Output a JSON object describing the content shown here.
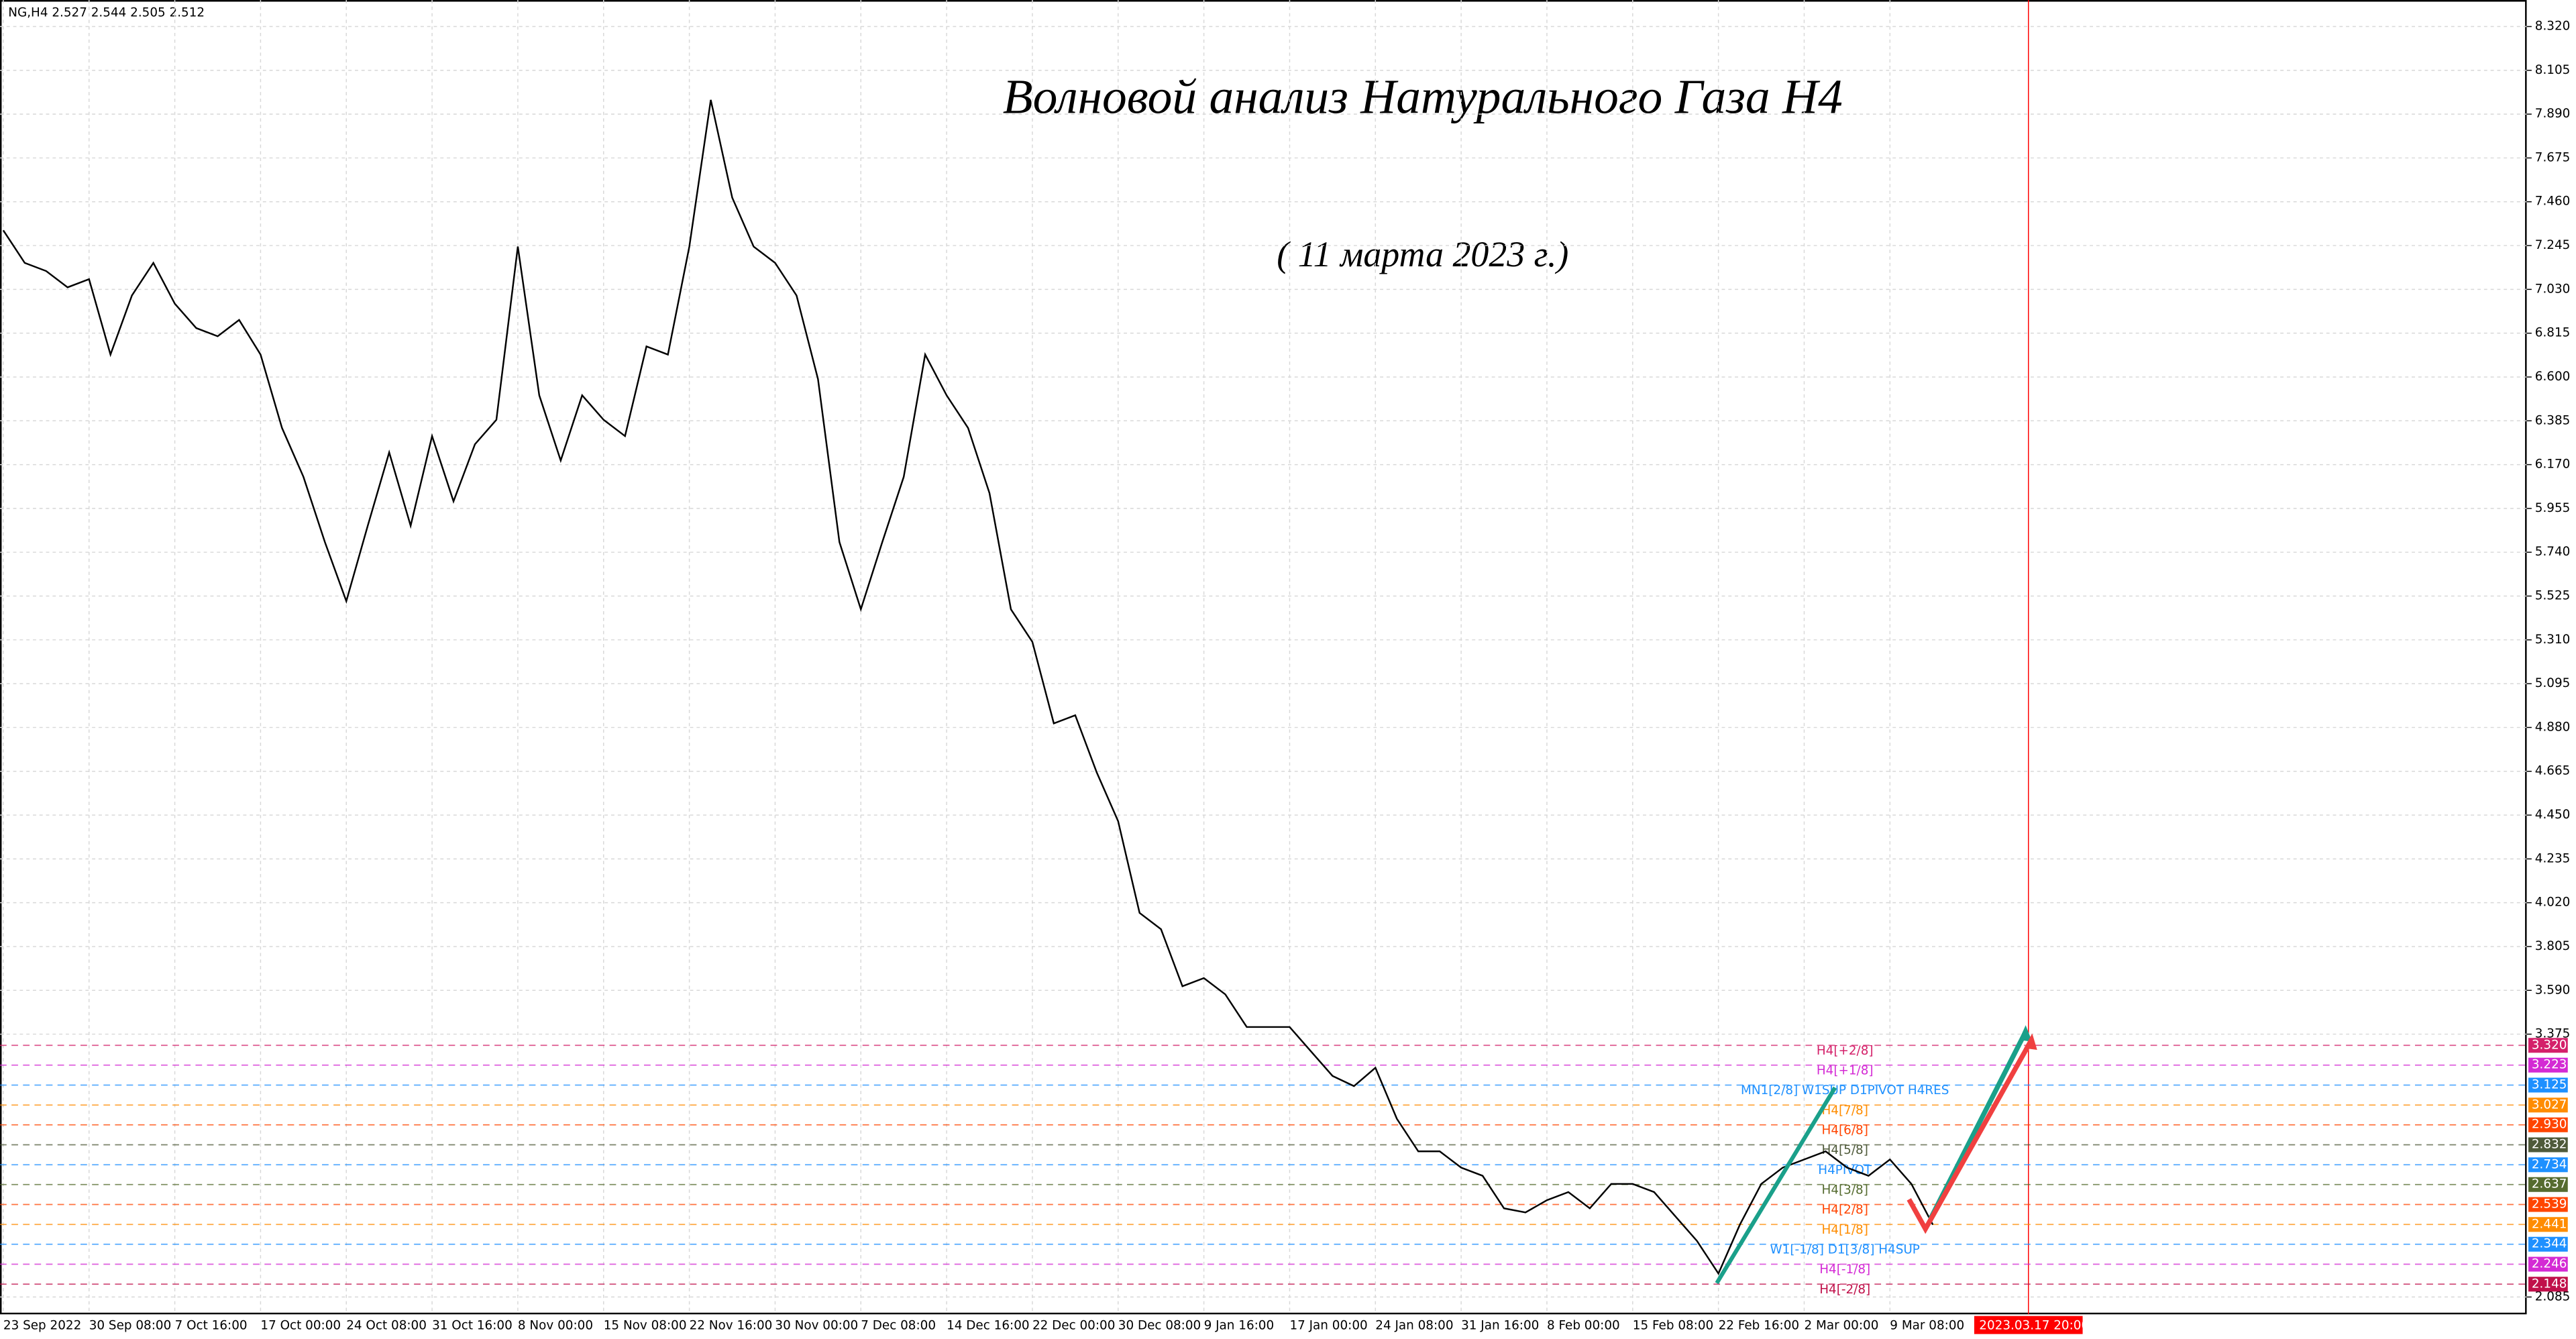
{
  "chart_data": {
    "type": "line",
    "header": "NG,H4  2.527 2.544 2.505 2.512",
    "title": "Волновой анализ Натурального Газа H4",
    "subtitle": "( 11 марта 2023 г.)",
    "color": "#000000",
    "cursor_color": "#ff0000",
    "grid": true,
    "ylim": [
      2.0,
      8.45
    ],
    "yticks": [
      {
        "value": 8.32,
        "label": "8.320"
      },
      {
        "value": 8.105,
        "label": "8.105"
      },
      {
        "value": 7.89,
        "label": "7.890"
      },
      {
        "value": 7.675,
        "label": "7.675"
      },
      {
        "value": 7.46,
        "label": "7.460"
      },
      {
        "value": 7.245,
        "label": "7.245"
      },
      {
        "value": 7.03,
        "label": "7.030"
      },
      {
        "value": 6.815,
        "label": "6.815"
      },
      {
        "value": 6.6,
        "label": "6.600"
      },
      {
        "value": 6.385,
        "label": "6.385"
      },
      {
        "value": 6.17,
        "label": "6.170"
      },
      {
        "value": 5.955,
        "label": "5.955"
      },
      {
        "value": 5.74,
        "label": "5.740"
      },
      {
        "value": 5.525,
        "label": "5.525"
      },
      {
        "value": 5.31,
        "label": "5.310"
      },
      {
        "value": 5.095,
        "label": "5.095"
      },
      {
        "value": 4.88,
        "label": "4.880"
      },
      {
        "value": 4.665,
        "label": "4.665"
      },
      {
        "value": 4.45,
        "label": "4.450"
      },
      {
        "value": 4.235,
        "label": "4.235"
      },
      {
        "value": 4.02,
        "label": "4.020"
      },
      {
        "value": 3.805,
        "label": "3.805"
      },
      {
        "value": 3.59,
        "label": "3.590"
      },
      {
        "value": 3.375,
        "label": "3.375"
      },
      {
        "value": 2.085,
        "label": "2.085"
      }
    ],
    "categories": [
      "23 Sep 2022",
      null,
      null,
      null,
      "30 Sep 08:00",
      null,
      null,
      null,
      "7 Oct 16:00",
      null,
      null,
      null,
      "17 Oct 00:00",
      null,
      null,
      null,
      "24 Oct 08:00",
      null,
      null,
      null,
      "31 Oct 16:00",
      null,
      null,
      null,
      "8 Nov 00:00",
      null,
      null,
      null,
      "15 Nov 08:00",
      null,
      null,
      null,
      "22 Nov 16:00",
      null,
      null,
      null,
      "30 Nov 00:00",
      null,
      null,
      null,
      "7 Dec 08:00",
      null,
      null,
      null,
      "14 Dec 16:00",
      null,
      null,
      null,
      "22 Dec 00:00",
      null,
      null,
      null,
      "30 Dec 08:00",
      null,
      null,
      null,
      "9 Jan 16:00",
      null,
      null,
      null,
      "17 Jan 00:00",
      null,
      null,
      null,
      "24 Jan 08:00",
      null,
      null,
      null,
      "31 Jan 16:00",
      null,
      null,
      null,
      "8 Feb 00:00",
      null,
      null,
      null,
      "15 Feb 08:00",
      null,
      null,
      null,
      "22 Feb 16:00",
      null,
      null,
      null,
      "2 Mar 00:00",
      null,
      null,
      null,
      "9 Mar 08:00",
      null,
      null,
      null,
      null,
      null,
      "2023.03.17 20:00",
      null
    ],
    "values": [
      7.32,
      7.16,
      7.12,
      7.04,
      7.08,
      6.71,
      7.0,
      7.16,
      6.96,
      6.84,
      6.8,
      6.88,
      6.71,
      6.35,
      6.11,
      5.79,
      5.5,
      5.87,
      6.23,
      5.87,
      6.31,
      5.99,
      6.27,
      6.39,
      7.24,
      6.51,
      6.19,
      6.51,
      6.39,
      6.31,
      6.75,
      6.71,
      7.24,
      7.96,
      7.48,
      7.24,
      7.16,
      7.0,
      6.59,
      5.79,
      5.46,
      5.79,
      6.11,
      6.71,
      6.51,
      6.35,
      6.03,
      5.46,
      5.3,
      4.9,
      4.94,
      4.66,
      4.42,
      3.97,
      3.89,
      3.61,
      3.65,
      3.57,
      3.41,
      3.41,
      3.41,
      3.29,
      3.17,
      3.12,
      3.21,
      2.96,
      2.8,
      2.8,
      2.72,
      2.68,
      2.52,
      2.5,
      2.56,
      2.6,
      2.52,
      2.64,
      2.64,
      2.6,
      2.48,
      2.36,
      2.2,
      2.44,
      2.64,
      2.72,
      2.76,
      2.8,
      2.72,
      2.68,
      2.76,
      2.64,
      2.44,
      null,
      null,
      null,
      null,
      null
    ],
    "levels": [
      {
        "name": "H4[+2/8]",
        "value": 3.32,
        "label": "3.320",
        "color": "#d4206a"
      },
      {
        "name": "H4[+1/8]",
        "value": 3.223,
        "label": "3.223",
        "color": "#d42ad4"
      },
      {
        "name": "MN1[2/8] W1SUP D1PIVOT H4RES",
        "value": 3.125,
        "label": "3.125",
        "color": "#1e90ff"
      },
      {
        "name": "H4[7/8]",
        "value": 3.027,
        "label": "3.027",
        "color": "#ff8c00"
      },
      {
        "name": "H4[6/8]",
        "value": 2.93,
        "label": "2.930",
        "color": "#ff4500"
      },
      {
        "name": "H4[5/8]",
        "value": 2.832,
        "label": "2.832",
        "color": "#4f5a3a"
      },
      {
        "name": "H4PIVOT",
        "value": 2.734,
        "label": "2.734",
        "color": "#1e90ff"
      },
      {
        "name": "H4[3/8]",
        "value": 2.637,
        "label": "2.637",
        "color": "#556b2f"
      },
      {
        "name": "H4[2/8]",
        "value": 2.539,
        "label": "2.539",
        "color": "#ff4500"
      },
      {
        "name": "H4[1/8]",
        "value": 2.441,
        "label": "2.441",
        "color": "#ff8c00"
      },
      {
        "name": "W1[-1/8] D1[3/8] H4SUP",
        "value": 2.344,
        "label": "2.344",
        "color": "#1e90ff"
      },
      {
        "name": "H4[-1/8]",
        "value": 2.246,
        "label": "2.246",
        "color": "#d42ad4"
      },
      {
        "name": "H4[-2/8]",
        "value": 2.148,
        "label": "2.148",
        "color": "#c0104a"
      }
    ]
  }
}
